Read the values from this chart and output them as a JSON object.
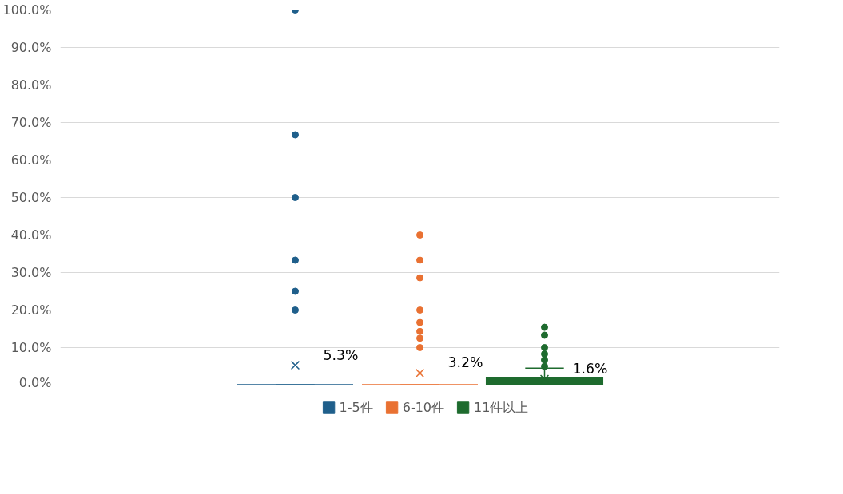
{
  "chart_data": {
    "type": "box",
    "categories": [
      null
    ],
    "series": [
      {
        "name": "1-5件",
        "color": "#1f5f8b",
        "boxes": [
          {
            "low": 0,
            "q1": 0,
            "median": 0,
            "q3": 0,
            "high": 0,
            "mean": 5.3,
            "outliers": [
              20,
              25,
              33.3,
              50,
              66.7,
              100
            ]
          }
        ]
      },
      {
        "name": "6-10件",
        "color": "#e97132",
        "boxes": [
          {
            "low": 0,
            "q1": 0,
            "median": 0,
            "q3": 0,
            "high": 0,
            "mean": 3.2,
            "outliers": [
              10,
              12.5,
              14.3,
              16.7,
              20,
              28.6,
              33.3,
              40
            ]
          }
        ]
      },
      {
        "name": "11件以上",
        "color": "#1e6b2e",
        "boxes": [
          {
            "low": 0,
            "q1": 0,
            "median": 0,
            "q3": 2,
            "high": 4.5,
            "mean": 1.6,
            "outliers": [
              5,
              6.7,
              8.3,
              10,
              13.3,
              15.4
            ]
          }
        ]
      }
    ],
    "annotations": [
      "5.3%",
      "3.2%",
      "1.6%"
    ],
    "ylim": [
      0,
      100
    ],
    "yticks": [
      {
        "value": 0,
        "label": "0.0%"
      },
      {
        "value": 10,
        "label": "10.0%"
      },
      {
        "value": 20,
        "label": "20.0%"
      },
      {
        "value": 30,
        "label": "30.0%"
      },
      {
        "value": 40,
        "label": "40.0%"
      },
      {
        "value": 50,
        "label": "50.0%"
      },
      {
        "value": 60,
        "label": "60.0%"
      },
      {
        "value": 70,
        "label": "70.0%"
      },
      {
        "value": 80,
        "label": "80.0%"
      },
      {
        "value": 90,
        "label": "90.0%"
      },
      {
        "value": 100,
        "label": "100.0%"
      }
    ],
    "grid": "y",
    "legend": "bottom",
    "tick_labels": "y"
  }
}
